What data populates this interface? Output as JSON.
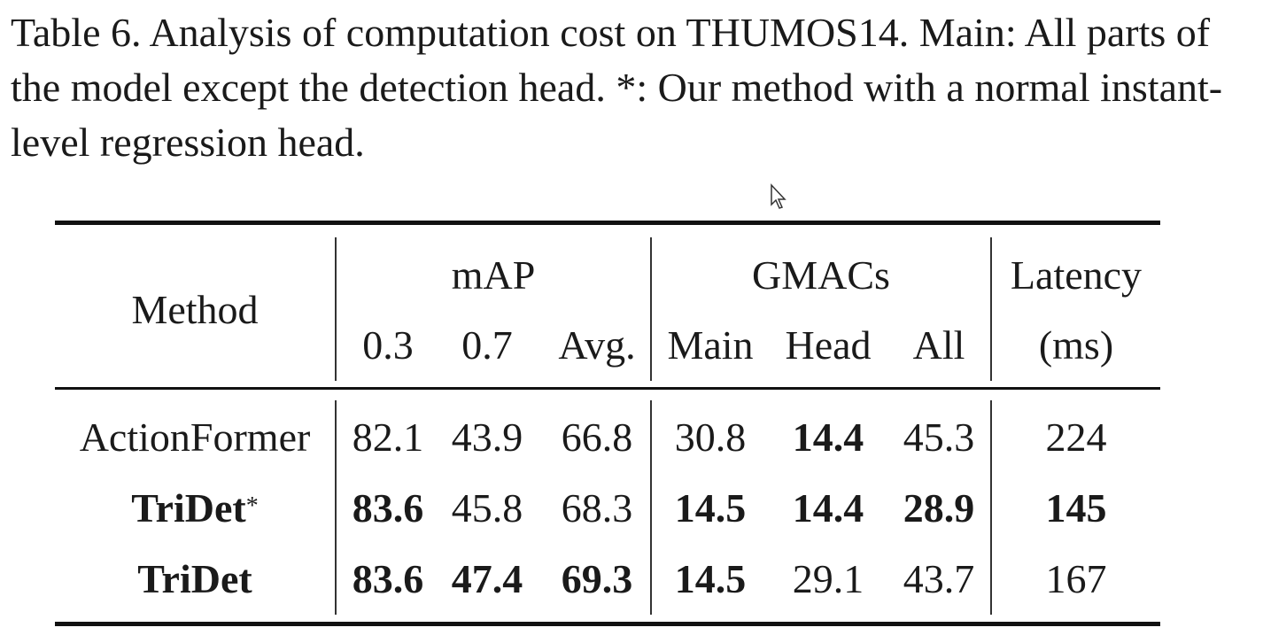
{
  "caption": "Table 6. Analysis of computation cost on THUMOS14. Main: All parts of the model except the detection head. *: Our method with a normal instant-level regression head.",
  "table": {
    "header": {
      "method": "Method",
      "map_group": "mAP",
      "gmacs_group": "GMACs",
      "latency_line1": "Latency",
      "latency_line2": "(ms)",
      "sub": [
        "0.3",
        "0.7",
        "Avg.",
        "Main",
        "Head",
        "All"
      ]
    },
    "rows": [
      {
        "method": "ActionFormer",
        "method_sup": "",
        "cells": [
          "82.1",
          "43.9",
          "66.8",
          "30.8",
          "14.4",
          "45.3",
          "224"
        ],
        "bold": [
          false,
          false,
          false,
          false,
          true,
          false,
          false
        ],
        "method_bold": false
      },
      {
        "method": "TriDet",
        "method_sup": "*",
        "cells": [
          "83.6",
          "45.8",
          "68.3",
          "14.5",
          "14.4",
          "28.9",
          "145"
        ],
        "bold": [
          true,
          false,
          false,
          true,
          true,
          true,
          true
        ],
        "method_bold": true
      },
      {
        "method": "TriDet",
        "method_sup": "",
        "cells": [
          "83.6",
          "47.4",
          "69.3",
          "14.5",
          "29.1",
          "43.7",
          "167"
        ],
        "bold": [
          true,
          true,
          true,
          true,
          false,
          false,
          false
        ],
        "method_bold": true
      }
    ]
  }
}
